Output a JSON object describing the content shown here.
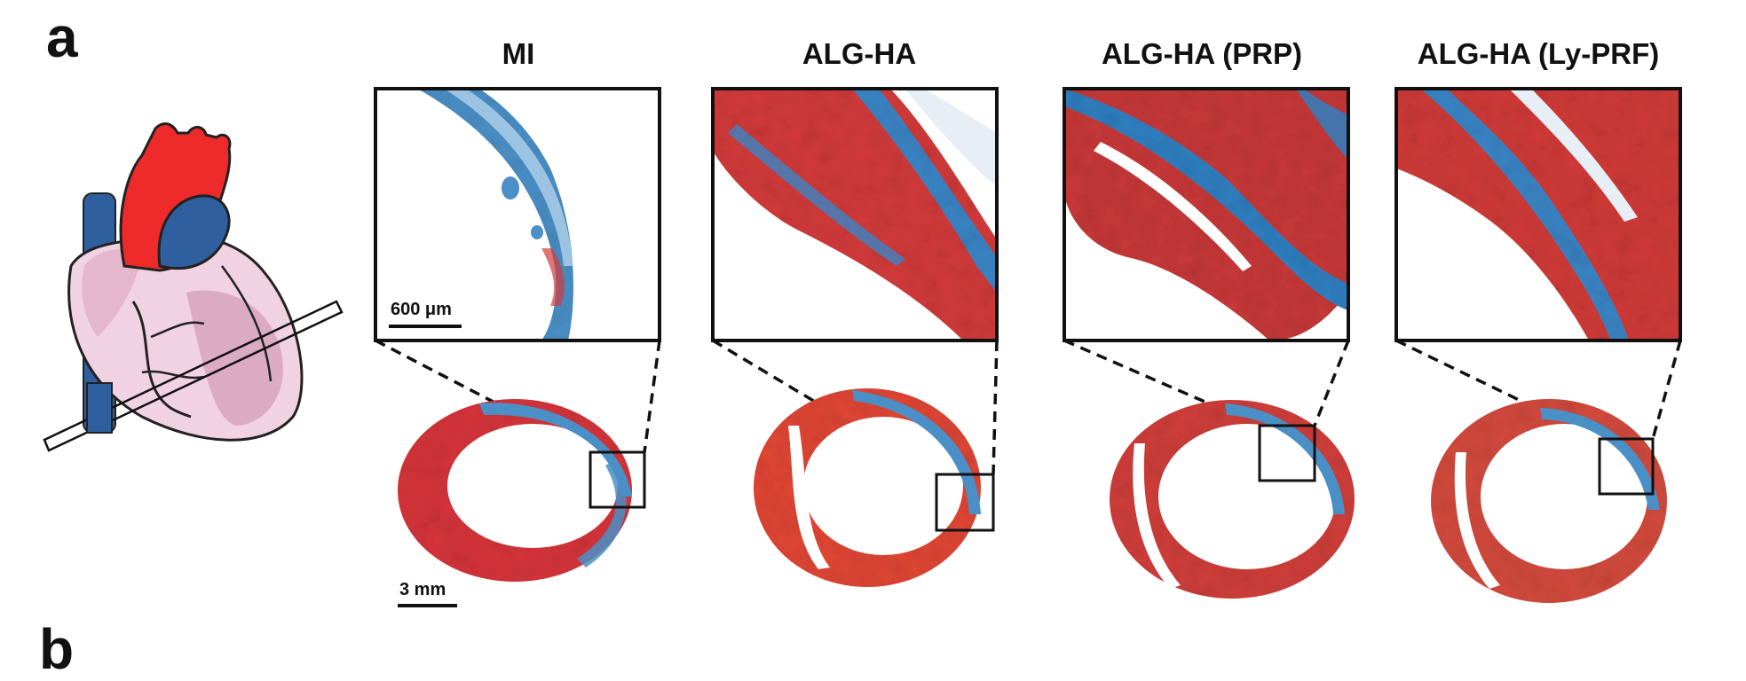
{
  "figure": {
    "panel_label": "a",
    "next_panel_label": "b",
    "columns": [
      {
        "title": "MI"
      },
      {
        "title": "ALG-HA"
      },
      {
        "title": "ALG-HA (PRP)"
      },
      {
        "title": "ALG-HA (Ly-PRF)"
      }
    ],
    "scale_bars": {
      "zoom": "600 μm",
      "overview": "3 mm"
    },
    "colors": {
      "stain_red": "#d23a3a",
      "stain_blue": "#2f7fc0",
      "heart_pink": "#f3d6e4",
      "aorta_red": "#ee2a2a",
      "vessel_blue": "#2f5f9e"
    }
  }
}
